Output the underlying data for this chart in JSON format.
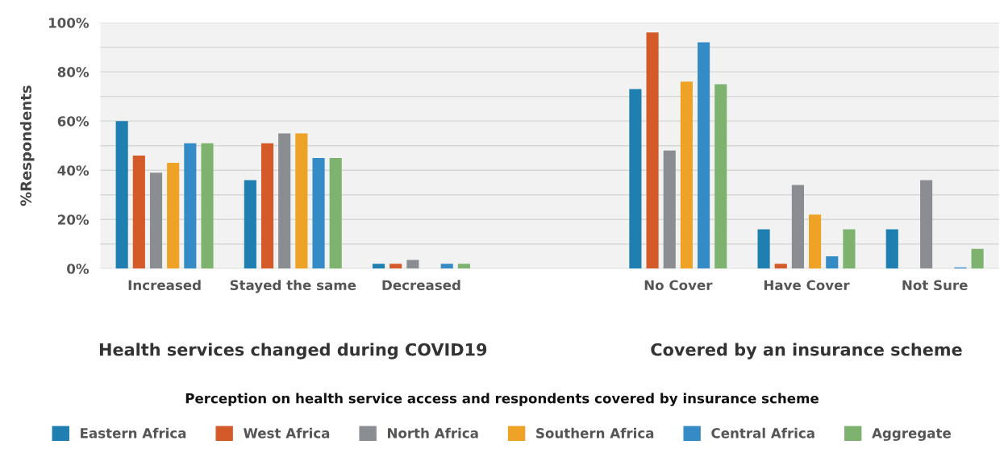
{
  "chart_data": {
    "type": "bar",
    "title": "Perception on health service access and respondents covered by insurance scheme",
    "ylabel": "%Respondents",
    "categories": [
      "Increased",
      "Stayed the same",
      "Decreased",
      null,
      "No Cover",
      "Have Cover",
      "Not Sure"
    ],
    "series": [
      {
        "name": "Eastern Africa",
        "color": "#1f7fb0",
        "values": [
          60,
          36,
          2,
          null,
          73,
          16,
          16
        ]
      },
      {
        "name": "West Africa",
        "color": "#d45b29",
        "values": [
          46,
          51,
          2,
          null,
          96,
          2,
          null
        ]
      },
      {
        "name": "North Africa",
        "color": "#8a8e92",
        "values": [
          39,
          55,
          3.5,
          null,
          48,
          34,
          36
        ]
      },
      {
        "name": "Southern Africa",
        "color": "#eea326",
        "values": [
          43,
          55,
          null,
          null,
          76,
          22,
          null
        ]
      },
      {
        "name": "Central Africa",
        "color": "#358bc6",
        "values": [
          51,
          45,
          2,
          null,
          92,
          5,
          0.5
        ]
      },
      {
        "name": "Aggregate",
        "color": "#7db36e",
        "values": [
          51,
          45,
          2,
          null,
          75,
          16,
          8
        ]
      }
    ],
    "ylim": [
      0,
      100
    ],
    "yticks": [
      {
        "value": 0,
        "label": "0%"
      },
      {
        "value": 10,
        "label": null
      },
      {
        "value": 20,
        "label": "20%"
      },
      {
        "value": 30,
        "label": null
      },
      {
        "value": 40,
        "label": "40%"
      },
      {
        "value": 50,
        "label": null
      },
      {
        "value": 60,
        "label": "60%"
      },
      {
        "value": 70,
        "label": null
      },
      {
        "value": 80,
        "label": "80%"
      },
      {
        "value": 90,
        "label": null
      },
      {
        "value": 100,
        "label": "100%"
      }
    ],
    "grid": "y",
    "legend": "bottom",
    "annotations": [
      "Health services changed during COVID19",
      "Covered by an insurance scheme"
    ]
  }
}
